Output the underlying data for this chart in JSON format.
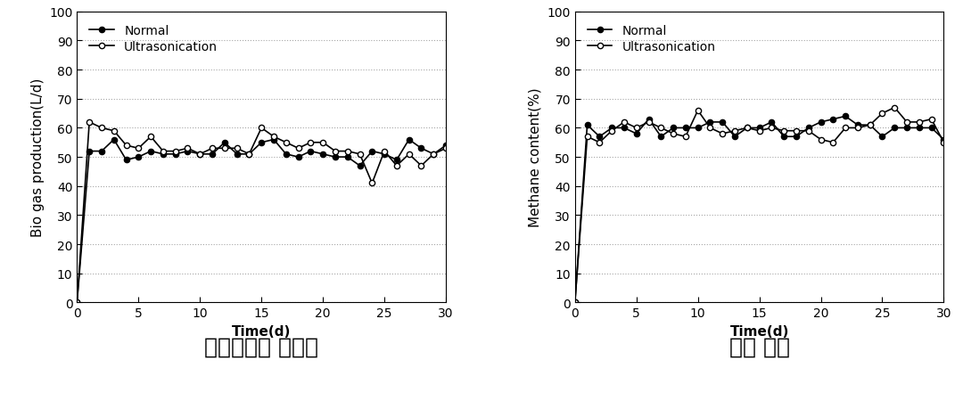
{
  "biogas": {
    "normal_x": [
      0,
      1,
      2,
      3,
      4,
      5,
      6,
      7,
      8,
      9,
      10,
      11,
      12,
      13,
      14,
      15,
      16,
      17,
      18,
      19,
      20,
      21,
      22,
      23,
      24,
      25,
      26,
      27,
      28,
      29,
      30
    ],
    "normal_y": [
      0,
      52,
      52,
      56,
      49,
      50,
      52,
      51,
      51,
      52,
      51,
      51,
      55,
      51,
      51,
      55,
      56,
      51,
      50,
      52,
      51,
      50,
      50,
      47,
      52,
      51,
      49,
      56,
      53,
      51,
      54
    ],
    "ultra_x": [
      0,
      1,
      2,
      3,
      4,
      5,
      6,
      7,
      8,
      9,
      10,
      11,
      12,
      13,
      14,
      15,
      16,
      17,
      18,
      19,
      20,
      21,
      22,
      23,
      24,
      25,
      26,
      27,
      28,
      29,
      30
    ],
    "ultra_y": [
      0,
      62,
      60,
      59,
      54,
      53,
      57,
      52,
      52,
      53,
      51,
      53,
      53,
      53,
      51,
      60,
      57,
      55,
      53,
      55,
      55,
      52,
      52,
      51,
      41,
      52,
      47,
      51,
      47,
      51,
      53
    ],
    "ylabel": "Bio gas production(L/d)",
    "xlabel": "Time(d)",
    "title": "바이오가스 발생량",
    "ylim": [
      0,
      100
    ],
    "xlim": [
      0,
      30
    ],
    "yticks": [
      0,
      10,
      20,
      30,
      40,
      50,
      60,
      70,
      80,
      90,
      100
    ],
    "xticks": [
      0,
      5,
      10,
      15,
      20,
      25,
      30
    ]
  },
  "methane": {
    "normal_x": [
      0,
      1,
      2,
      3,
      4,
      5,
      6,
      7,
      8,
      9,
      10,
      11,
      12,
      13,
      14,
      15,
      16,
      17,
      18,
      19,
      20,
      21,
      22,
      23,
      24,
      25,
      26,
      27,
      28,
      29,
      30
    ],
    "normal_y": [
      0,
      61,
      57,
      60,
      60,
      58,
      63,
      57,
      60,
      60,
      60,
      62,
      62,
      57,
      60,
      60,
      62,
      57,
      57,
      60,
      62,
      63,
      64,
      61,
      61,
      57,
      60,
      60,
      60,
      60,
      56
    ],
    "ultra_x": [
      0,
      1,
      2,
      3,
      4,
      5,
      6,
      7,
      8,
      9,
      10,
      11,
      12,
      13,
      14,
      15,
      16,
      17,
      18,
      19,
      20,
      21,
      22,
      23,
      24,
      25,
      26,
      27,
      28,
      29,
      30
    ],
    "ultra_y": [
      0,
      57,
      55,
      59,
      62,
      60,
      62,
      60,
      58,
      57,
      66,
      60,
      58,
      59,
      60,
      59,
      60,
      59,
      59,
      59,
      56,
      55,
      60,
      60,
      61,
      65,
      67,
      62,
      62,
      63,
      55
    ],
    "ylabel": "Methane content(%)",
    "xlabel": "Time(d)",
    "title": "메탄 함량",
    "ylim": [
      0,
      100
    ],
    "xlim": [
      0,
      30
    ],
    "yticks": [
      0,
      10,
      20,
      30,
      40,
      50,
      60,
      70,
      80,
      90,
      100
    ],
    "xticks": [
      0,
      5,
      10,
      15,
      20,
      25,
      30
    ]
  },
  "legend_normal": "Normal",
  "legend_ultra": "Ultrasonication",
  "line_color": "#000000",
  "bg_color": "#ffffff",
  "title_fontsize": 18,
  "label_fontsize": 11,
  "tick_fontsize": 10,
  "legend_fontsize": 10
}
